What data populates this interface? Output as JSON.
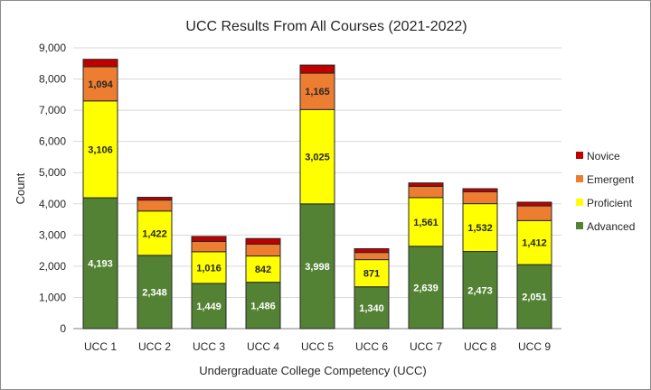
{
  "chart_data": {
    "type": "bar",
    "stacked": true,
    "title": "UCC Results From All Courses (2021-2022)",
    "xlabel": "Undergraduate College Competency (UCC)",
    "ylabel": "Count",
    "ylim": [
      0,
      9000
    ],
    "yticks": [
      0,
      1000,
      2000,
      3000,
      4000,
      5000,
      6000,
      7000,
      8000,
      9000
    ],
    "ytick_labels": [
      "0",
      "1,000",
      "2,000",
      "3,000",
      "4,000",
      "5,000",
      "6,000",
      "7,000",
      "8,000",
      "9,000"
    ],
    "grid": true,
    "legend_position": "right",
    "categories": [
      "UCC 1",
      "UCC 2",
      "UCC 3",
      "UCC 4",
      "UCC 5",
      "UCC 6",
      "UCC 7",
      "UCC 8",
      "UCC 9"
    ],
    "series": [
      {
        "name": "Advanced",
        "color": "#548235",
        "label_color": "#ffffff",
        "values": [
          4193,
          2348,
          1449,
          1486,
          3998,
          1340,
          2639,
          2473,
          2051
        ],
        "labels": [
          "4,193",
          "2,348",
          "1,449",
          "1,486",
          "3,998",
          "1,340",
          "2,639",
          "2,473",
          "2,051"
        ]
      },
      {
        "name": "Proficient",
        "color": "#ffff00",
        "label_color": "#262626",
        "values": [
          3106,
          1422,
          1016,
          842,
          3025,
          871,
          1561,
          1532,
          1412
        ],
        "labels": [
          "3,106",
          "1,422",
          "1,016",
          "842",
          "3,025",
          "871",
          "1,561",
          "1,532",
          "1,412"
        ]
      },
      {
        "name": "Emergent",
        "color": "#ed7d31",
        "label_color": "#262626",
        "values": [
          1094,
          350,
          330,
          380,
          1165,
          230,
          360,
          380,
          470
        ],
        "labels": [
          "1,094",
          "",
          "",
          "",
          "1,165",
          "",
          "",
          "",
          ""
        ]
      },
      {
        "name": "Novice",
        "color": "#c00000",
        "label_color": "#ffffff",
        "values": [
          240,
          90,
          160,
          180,
          260,
          120,
          110,
          100,
          120
        ],
        "labels": [
          "",
          "",
          "",
          "",
          "",
          "",
          "",
          "",
          ""
        ]
      }
    ],
    "legend_order": [
      "Novice",
      "Emergent",
      "Proficient",
      "Advanced"
    ]
  }
}
